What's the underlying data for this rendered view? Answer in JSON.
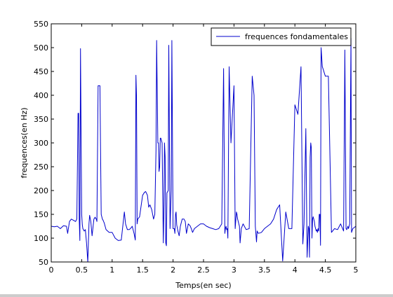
{
  "chart_data": {
    "type": "line",
    "title": "",
    "xlabel": "Temps(en sec)",
    "ylabel": "frequences(en Hz)",
    "xlim": [
      0,
      5
    ],
    "ylim": [
      50,
      550
    ],
    "xticks": [
      0,
      0.5,
      1,
      1.5,
      2,
      2.5,
      3,
      3.5,
      4,
      4.5,
      5
    ],
    "xtick_labels": [
      "0",
      "0.5",
      "1",
      "1.5",
      "2",
      "2.5",
      "3",
      "3.5",
      "4",
      "4.5",
      "5"
    ],
    "yticks": [
      50,
      100,
      150,
      200,
      250,
      300,
      350,
      400,
      450,
      500,
      550
    ],
    "ytick_labels": [
      "50",
      "100",
      "150",
      "200",
      "250",
      "300",
      "350",
      "400",
      "450",
      "500",
      "550"
    ],
    "grid": false,
    "legend_placement": "top-right",
    "series": [
      {
        "name": "frequences fondamentales",
        "color": "#0000cc",
        "x": [
          0.0,
          0.05,
          0.1,
          0.15,
          0.2,
          0.25,
          0.27,
          0.3,
          0.33,
          0.36,
          0.4,
          0.42,
          0.44,
          0.45,
          0.46,
          0.47,
          0.48,
          0.49,
          0.5,
          0.51,
          0.52,
          0.54,
          0.56,
          0.58,
          0.6,
          0.62,
          0.63,
          0.65,
          0.67,
          0.7,
          0.72,
          0.74,
          0.75,
          0.77,
          0.78,
          0.79,
          0.8,
          0.82,
          0.84,
          0.85,
          0.86,
          0.87,
          0.9,
          0.95,
          1.0,
          1.05,
          1.1,
          1.15,
          1.2,
          1.22,
          1.25,
          1.28,
          1.3,
          1.33,
          1.36,
          1.38,
          1.39,
          1.4,
          1.41,
          1.42,
          1.45,
          1.5,
          1.53,
          1.55,
          1.58,
          1.6,
          1.62,
          1.65,
          1.68,
          1.7,
          1.72,
          1.73,
          1.75,
          1.76,
          1.77,
          1.78,
          1.79,
          1.8,
          1.82,
          1.84,
          1.85,
          1.86,
          1.87,
          1.88,
          1.89,
          1.9,
          1.92,
          1.93,
          1.95,
          1.97,
          1.98,
          2.0,
          2.02,
          2.03,
          2.04,
          2.05,
          2.06,
          2.08,
          2.1,
          2.12,
          2.15,
          2.18,
          2.2,
          2.22,
          2.25,
          2.28,
          2.3,
          2.32,
          2.35,
          2.4,
          2.45,
          2.5,
          2.55,
          2.6,
          2.65,
          2.7,
          2.75,
          2.8,
          2.83,
          2.85,
          2.86,
          2.87,
          2.88,
          2.89,
          2.9,
          2.92,
          2.95,
          3.0,
          3.02,
          3.04,
          3.05,
          3.06,
          3.07,
          3.08,
          3.09,
          3.1,
          3.12,
          3.15,
          3.2,
          3.25,
          3.3,
          3.33,
          3.35,
          3.36,
          3.37,
          3.38,
          3.4,
          3.45,
          3.5,
          3.55,
          3.6,
          3.65,
          3.7,
          3.75,
          3.8,
          3.85,
          3.9,
          3.95,
          4.0,
          4.05,
          4.1,
          4.13,
          4.15,
          4.18,
          4.2,
          4.22,
          4.23,
          4.24,
          4.25,
          4.26,
          4.27,
          4.28,
          4.29,
          4.3,
          4.32,
          4.33,
          4.34,
          4.35,
          4.36,
          4.37,
          4.38,
          4.39,
          4.4,
          4.41,
          4.42,
          4.43,
          4.45,
          4.5,
          4.55,
          4.6,
          4.65,
          4.7,
          4.75,
          4.8,
          4.82,
          4.84,
          4.85,
          4.86,
          4.87,
          4.88,
          4.9,
          4.92,
          4.93,
          4.95,
          5.0
        ],
        "y": [
          125,
          124,
          125,
          120,
          126,
          125,
          110,
          135,
          140,
          138,
          135,
          140,
          362,
          362,
          140,
          95,
          498,
          330,
          150,
          128,
          120,
          115,
          118,
          90,
          50,
          130,
          148,
          135,
          105,
          140,
          144,
          140,
          135,
          420,
          420,
          420,
          420,
          150,
          140,
          138,
          135,
          132,
          118,
          112,
          112,
          100,
          95,
          96,
          155,
          130,
          118,
          118,
          120,
          125,
          110,
          96,
          442,
          400,
          130,
          140,
          145,
          190,
          196,
          198,
          190,
          165,
          170,
          160,
          140,
          150,
          285,
          515,
          300,
          300,
          240,
          250,
          310,
          310,
          300,
          90,
          170,
          300,
          270,
          90,
          84,
          195,
          200,
          505,
          120,
          200,
          515,
          120,
          120,
          110,
          150,
          155,
          128,
          115,
          105,
          125,
          140,
          140,
          135,
          110,
          130,
          126,
          120,
          112,
          120,
          125,
          130,
          130,
          125,
          122,
          120,
          118,
          120,
          130,
          456,
          110,
          120,
          125,
          118,
          120,
          100,
          460,
          300,
          420,
          120,
          155,
          150,
          140,
          135,
          130,
          125,
          90,
          120,
          130,
          118,
          120,
          440,
          400,
          125,
          110,
          92,
          115,
          110,
          112,
          120,
          125,
          130,
          140,
          160,
          170,
          52,
          155,
          120,
          120,
          380,
          360,
          460,
          88,
          130,
          330,
          60,
          125,
          120,
          60,
          270,
          300,
          290,
          100,
          140,
          145,
          135,
          125,
          120,
          115,
          118,
          112,
          120,
          115,
          150,
          150,
          85,
          500,
          460,
          440,
          440,
          112,
          120,
          118,
          130,
          115,
          495,
          120,
          118,
          120,
          125,
          120,
          130,
          520,
          112,
          120,
          125
        ]
      }
    ]
  }
}
